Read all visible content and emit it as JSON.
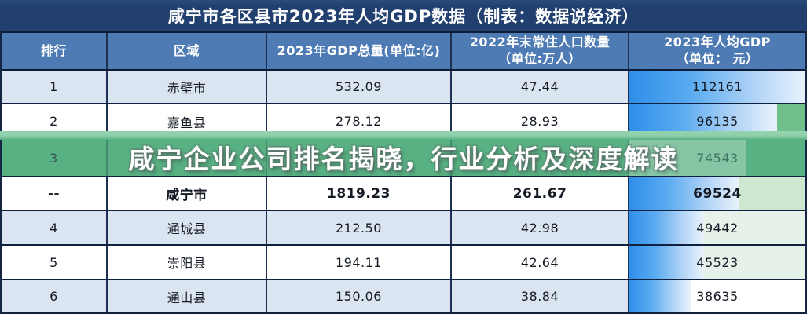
{
  "title": "咸宁市各区县市2023年人均GDP数据（制表：数据说经济）",
  "banner": {
    "headline": "咸宁企业公司排名揭晓，行业分析及深度解读"
  },
  "header": {
    "rank": "排行",
    "region": "区域",
    "gdp": "2023年GDP总量(单位:亿)",
    "population_line1": "2022年末常住人口数量",
    "population_line2": "（单位:万人）",
    "per_capita_line1": "2023年人均GDP",
    "per_capita_line2": "（单位： 元）"
  },
  "rows": [
    {
      "rank": "1",
      "region": "赤壁市",
      "gdp": "532.09",
      "population": "47.44",
      "per_capita": "112161",
      "bar_pct": 100
    },
    {
      "rank": "2",
      "region": "嘉鱼县",
      "gdp": "278.12",
      "population": "28.93",
      "per_capita": "96135",
      "bar_pct": 84
    },
    {
      "rank": "3",
      "region": "",
      "gdp": "",
      "population": "",
      "per_capita": "74543",
      "bar_pct": 66
    },
    {
      "rank": "--",
      "region": "咸宁市",
      "gdp": "1819.23",
      "population": "261.67",
      "per_capita": "69524",
      "bar_pct": 62
    },
    {
      "rank": "4",
      "region": "通城县",
      "gdp": "212.50",
      "population": "42.98",
      "per_capita": "49442",
      "bar_pct": 42
    },
    {
      "rank": "5",
      "region": "崇阳县",
      "gdp": "194.11",
      "population": "42.64",
      "per_capita": "45523",
      "bar_pct": 42
    },
    {
      "rank": "6",
      "region": "通山县",
      "gdp": "150.06",
      "population": "38.84",
      "per_capita": "38635",
      "bar_pct": 35
    }
  ],
  "colors": {
    "title_bar": "#21406f",
    "header_bg": "#4e7bb4",
    "stripe_blue": "#dbe4f1",
    "banner_green": "#58b183",
    "banner_strip_green": "#8ecfaa",
    "bar_blue_start": "#2f8ee9",
    "bar_blue_end": "#e9f2fc",
    "row2_tail_green": "#6fbf8a",
    "xianning_tail_green": "#cee7d1",
    "light_tail_green": "#e6f1e9",
    "grid_line": "#102140"
  },
  "chart_data": {
    "type": "table",
    "title": "咸宁市各区县市2023年人均GDP数据（制表：数据说经济）",
    "columns": [
      "排行",
      "区域",
      "2023年GDP总量(单位:亿)",
      "2022年末常住人口数量（单位:万人）",
      "2023年人均GDP（单位： 元）"
    ],
    "rows": [
      [
        "1",
        "赤壁市",
        "532.09",
        "47.44",
        "112161"
      ],
      [
        "2",
        "",
        "",
        "",
        "96135 (region/gdp/pop row visible: 嘉鱼县 278.12 28.93)"
      ],
      [
        "3",
        "(hidden behind banner)",
        "",
        "",
        "74543"
      ],
      [
        "--",
        "咸宁市",
        "1819.23",
        "261.67",
        "69524"
      ],
      [
        "4",
        "通城县",
        "212.50",
        "42.98",
        "49442"
      ],
      [
        "5",
        "崇阳县",
        "194.11",
        "42.64",
        "45523"
      ],
      [
        "6",
        "通山县",
        "150.06",
        "38.84",
        "38635"
      ]
    ],
    "notes": "第2行为 嘉鱼县 278.12 / 28.93 / 96135；第3行被绿色横幅遮挡，仅排名3与人均GDP 74543 可见；最后一列带蓝色渐变数据条",
    "overlay_headline": "咸宁企业公司排名揭晓，行业分析及深度解读"
  }
}
